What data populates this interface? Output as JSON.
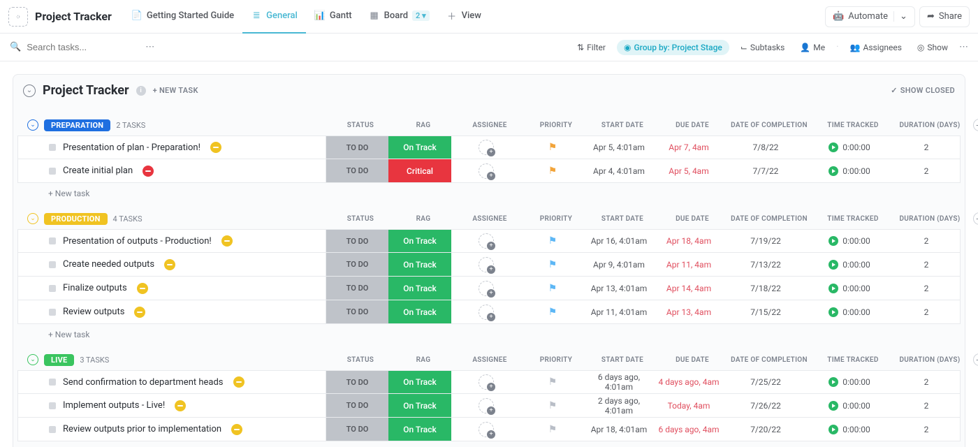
{
  "topbar": {
    "workspace_title": "Project Tracker",
    "views": [
      {
        "icon": "doc-icon",
        "label": "Getting Started Guide",
        "active": false
      },
      {
        "icon": "list-icon",
        "label": "General",
        "active": true
      },
      {
        "icon": "gantt-icon",
        "label": "Gantt",
        "active": false
      },
      {
        "icon": "board-icon",
        "label": "Board",
        "active": false,
        "count": "2"
      },
      {
        "icon": "plus-icon",
        "label": "View",
        "active": false
      }
    ],
    "automate": "Automate",
    "share": "Share"
  },
  "toolbar": {
    "search_placeholder": "Search tasks...",
    "filter": "Filter",
    "groupby": "Group by: Project Stage",
    "subtasks": "Subtasks",
    "me": "Me",
    "assignees": "Assignees",
    "show": "Show"
  },
  "list": {
    "title": "Project Tracker",
    "new_task": "+ NEW TASK",
    "show_closed": "SHOW CLOSED"
  },
  "columns": {
    "status": "STATUS",
    "rag": "RAG",
    "assignee": "ASSIGNEE",
    "priority": "PRIORITY",
    "start": "START DATE",
    "due": "DUE DATE",
    "completion": "DATE OF COMPLETION",
    "time": "TIME TRACKED",
    "duration": "DURATION (DAYS)"
  },
  "new_task_row": "+ New task",
  "colors": {
    "status_todo_bg": "#bfc3c9",
    "rag_ontrack": "#29b866",
    "rag_critical": "#e8353f",
    "flag_orange": "#f2a43a",
    "flag_blue": "#5db7f5",
    "flag_gray": "#b9bec7",
    "stage_prep": "#1f6fe0",
    "stage_prod": "#f0c322",
    "stage_live": "#3ac45f",
    "badge_yellow": "#f0c322",
    "badge_red": "#e8353f"
  },
  "groups": [
    {
      "stage": "PREPARATION",
      "stage_color_key": "stage_prep",
      "count": "2 TASKS",
      "tasks": [
        {
          "name": "Presentation of plan - Preparation!",
          "badge": "yellow",
          "status": "TO DO",
          "rag": "On Track",
          "rag_key": "rag_ontrack",
          "flag_key": "flag_orange",
          "start": "Apr 5, 4:01am",
          "due": "Apr 7, 4am",
          "completion": "7/8/22",
          "time": "0:00:00",
          "duration": "2"
        },
        {
          "name": "Create initial plan",
          "badge": "red",
          "status": "TO DO",
          "rag": "Critical",
          "rag_key": "rag_critical",
          "flag_key": "flag_orange",
          "start": "Apr 4, 4:01am",
          "due": "Apr 5, 4am",
          "completion": "7/7/22",
          "time": "0:00:00",
          "duration": "2"
        }
      ]
    },
    {
      "stage": "PRODUCTION",
      "stage_color_key": "stage_prod",
      "count": "4 TASKS",
      "tasks": [
        {
          "name": "Presentation of outputs - Production!",
          "badge": "yellow",
          "status": "TO DO",
          "rag": "On Track",
          "rag_key": "rag_ontrack",
          "flag_key": "flag_blue",
          "start": "Apr 16, 4:01am",
          "due": "Apr 18, 4am",
          "completion": "7/19/22",
          "time": "0:00:00",
          "duration": "2"
        },
        {
          "name": "Create needed outputs",
          "badge": "yellow",
          "status": "TO DO",
          "rag": "On Track",
          "rag_key": "rag_ontrack",
          "flag_key": "flag_blue",
          "start": "Apr 9, 4:01am",
          "due": "Apr 11, 4am",
          "completion": "7/13/22",
          "time": "0:00:00",
          "duration": "2"
        },
        {
          "name": "Finalize outputs",
          "badge": "yellow",
          "status": "TO DO",
          "rag": "On Track",
          "rag_key": "rag_ontrack",
          "flag_key": "flag_blue",
          "start": "Apr 13, 4:01am",
          "due": "Apr 14, 4am",
          "completion": "7/18/22",
          "time": "0:00:00",
          "duration": "2"
        },
        {
          "name": "Review outputs",
          "badge": "yellow",
          "status": "TO DO",
          "rag": "On Track",
          "rag_key": "rag_ontrack",
          "flag_key": "flag_blue",
          "start": "Apr 11, 4:01am",
          "due": "Apr 13, 4am",
          "completion": "7/15/22",
          "time": "0:00:00",
          "duration": "2"
        }
      ]
    },
    {
      "stage": "LIVE",
      "stage_color_key": "stage_live",
      "count": "3 TASKS",
      "tasks": [
        {
          "name": "Send confirmation to department heads",
          "badge": "yellow",
          "status": "TO DO",
          "rag": "On Track",
          "rag_key": "rag_ontrack",
          "flag_key": "flag_gray",
          "start": "6 days ago, 4:01am",
          "due": "4 days ago, 4am",
          "completion": "7/25/22",
          "time": "0:00:00",
          "duration": "2"
        },
        {
          "name": "Implement outputs - Live!",
          "badge": "yellow",
          "status": "TO DO",
          "rag": "On Track",
          "rag_key": "rag_ontrack",
          "flag_key": "flag_gray",
          "start": "2 days ago, 4:01am",
          "due": "Today, 4am",
          "completion": "7/26/22",
          "time": "0:00:00",
          "duration": "2"
        },
        {
          "name": "Review outputs prior to implementation",
          "badge": "yellow",
          "status": "TO DO",
          "rag": "On Track",
          "rag_key": "rag_ontrack",
          "flag_key": "flag_gray",
          "start": "Apr 18, 4:01am",
          "due": "6 days ago, 4am",
          "completion": "7/20/22",
          "time": "0:00:00",
          "duration": "2"
        }
      ]
    }
  ]
}
